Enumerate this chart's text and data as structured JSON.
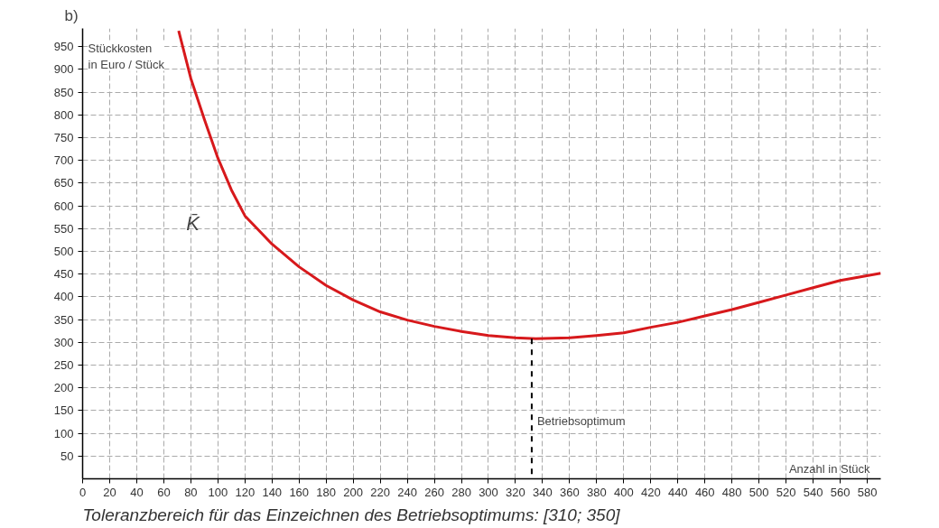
{
  "chart_data": {
    "type": "line",
    "title": "b)",
    "xlabel": "Anzahl in Stück",
    "ylabel": "Stückkosten\nin Euro / Stück",
    "xlim": [
      0,
      590
    ],
    "ylim": [
      0,
      990
    ],
    "xticks": [
      0,
      20,
      40,
      60,
      80,
      100,
      120,
      140,
      160,
      180,
      200,
      220,
      240,
      260,
      280,
      300,
      320,
      340,
      360,
      380,
      400,
      420,
      440,
      460,
      480,
      500,
      520,
      540,
      560,
      580
    ],
    "yticks": [
      50,
      100,
      150,
      200,
      250,
      300,
      350,
      400,
      450,
      500,
      550,
      600,
      650,
      700,
      750,
      800,
      850,
      900,
      950
    ],
    "grid": true,
    "marker": "none",
    "line_style": "solid",
    "series": [
      {
        "name": "K̄",
        "color": "#d7191c",
        "x": [
          71,
          80,
          90,
          100,
          110,
          120,
          140,
          160,
          180,
          200,
          220,
          240,
          260,
          280,
          300,
          320,
          335,
          360,
          380,
          400,
          420,
          440,
          460,
          480,
          500,
          520,
          540,
          560,
          590
        ],
        "values": [
          985,
          880,
          790,
          705,
          635,
          578,
          516,
          466,
          425,
          393,
          367,
          349,
          335,
          324,
          315,
          310,
          308,
          310,
          315,
          321,
          333,
          344,
          358,
          372,
          388,
          404,
          420,
          436,
          452
        ]
      },
      {
        "type": "line",
        "color": "#000000",
        "line_style": "dashed",
        "x": [
          332,
          332
        ],
        "values": [
          308,
          0
        ]
      }
    ],
    "annotations": [
      {
        "text": "Betriebsoptimum",
        "x": 332,
        "y": 126
      },
      "Toleranzbereich für das Einzeichnen des Betriebsoptimums: [310; 350]"
    ]
  }
}
